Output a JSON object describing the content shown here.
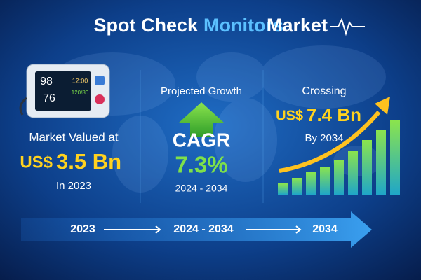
{
  "title": {
    "part1": "Spot Check",
    "part2": "Monitors",
    "part3": "Market"
  },
  "monitor": {
    "readings": [
      "98",
      "76",
      "12:00",
      "120/80"
    ]
  },
  "panels": [
    {
      "label": "Market Valued at",
      "currency": "US$",
      "value": "3.5 Bn",
      "note": "In 2023"
    },
    {
      "label": "Projected Growth",
      "metric": "CAGR",
      "value": "7.3%",
      "note": "2024 - 2034"
    },
    {
      "label": "Crossing",
      "currency": "US$",
      "value": "7.4 Bn",
      "note": "By 2034"
    }
  ],
  "timeline": [
    "2023",
    "2024 - 2034",
    "2034"
  ]
}
